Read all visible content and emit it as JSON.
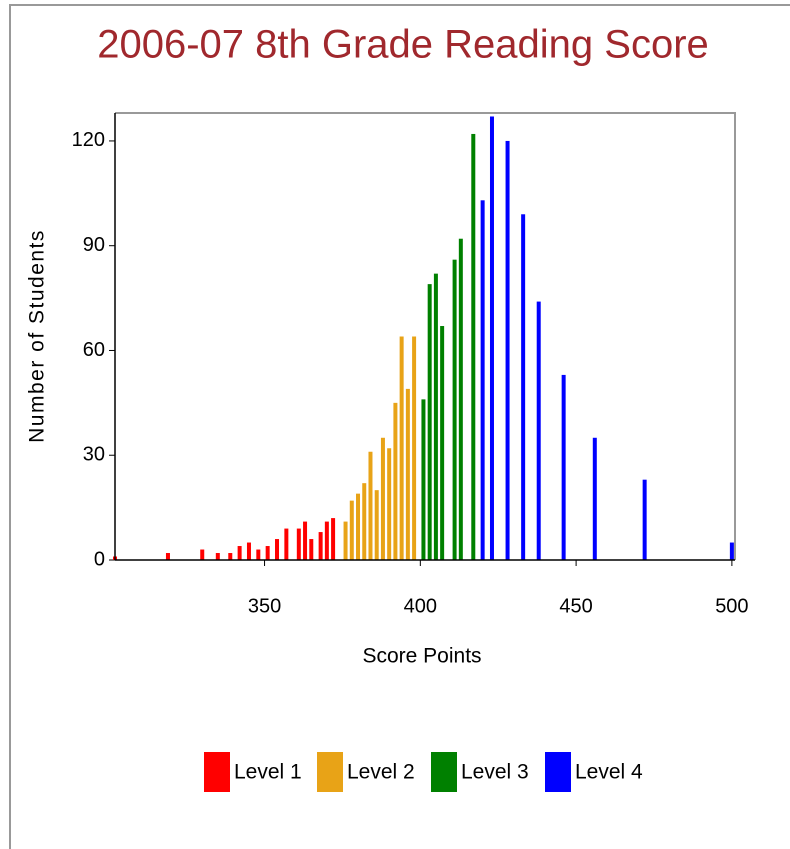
{
  "chart_data": {
    "type": "bar",
    "title": "2006-07 8th Grade Reading Score",
    "x_label": "Score Points",
    "y_label": "Number of Students",
    "xlim": [
      302,
      501
    ],
    "ylim": [
      0,
      128
    ],
    "xticks": [
      350,
      400,
      450,
      500
    ],
    "yticks": [
      0,
      30,
      60,
      90,
      120
    ],
    "series": [
      {
        "name": "Level 1",
        "color": "#ff0000",
        "x": [
          302,
          319,
          330,
          335,
          339,
          342,
          345,
          348,
          351,
          354,
          357,
          361,
          363,
          365,
          368,
          370,
          372
        ],
        "values": [
          1,
          2,
          3,
          2,
          2,
          4,
          5,
          3,
          4,
          6,
          9,
          9,
          11,
          6,
          8,
          11,
          12
        ]
      },
      {
        "name": "Level 2",
        "color": "#e8a317",
        "x": [
          376,
          378,
          380,
          382,
          384,
          386,
          388,
          390,
          392,
          394,
          396,
          398
        ],
        "values": [
          11,
          17,
          19,
          22,
          31,
          20,
          35,
          32,
          45,
          64,
          49,
          64
        ]
      },
      {
        "name": "Level 3",
        "color": "#008000",
        "x": [
          401,
          403,
          405,
          407,
          411,
          413,
          417
        ],
        "values": [
          46,
          79,
          82,
          67,
          86,
          92,
          122
        ]
      },
      {
        "name": "Level 4",
        "color": "#0000ff",
        "x": [
          420,
          423,
          428,
          433,
          438,
          446,
          456,
          472,
          500
        ],
        "values": [
          103,
          127,
          120,
          99,
          74,
          53,
          35,
          23,
          5
        ]
      }
    ]
  }
}
